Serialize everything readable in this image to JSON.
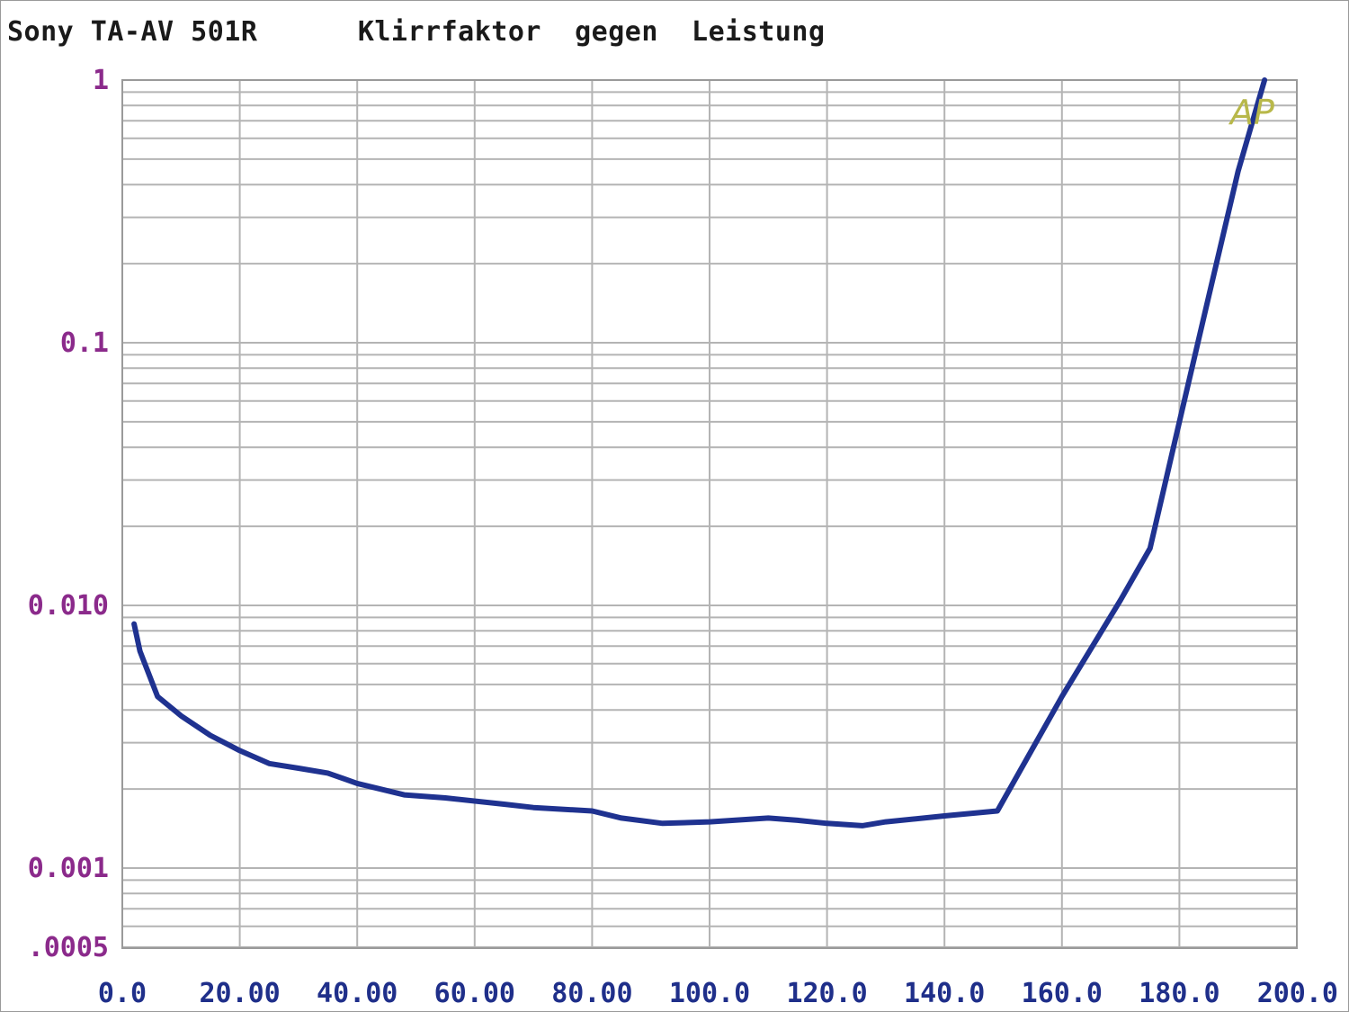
{
  "title": {
    "device": "Sony TA-AV 501R",
    "measurement": "Klirrfaktor  gegen  Leistung"
  },
  "logo": "AP",
  "colors": {
    "grid": "#b4b4b4",
    "frame": "#9a9a9a",
    "curve": "#1f3290",
    "y_tick_text": "#8b2a8b",
    "x_tick_text": "#1f2f8a",
    "logo": "#b8b84a"
  },
  "chart_data": {
    "type": "line",
    "title": "Klirrfaktor gegen Leistung",
    "xlabel": "",
    "ylabel": "",
    "xlim": [
      0,
      200
    ],
    "ylim": [
      0.0005,
      1
    ],
    "y_scale": "log",
    "grid": true,
    "x_ticks": [
      0,
      20,
      40,
      60,
      80,
      100,
      120,
      140,
      160,
      180,
      200
    ],
    "x_tick_labels": [
      "0.0",
      "20.00",
      "40.00",
      "60.00",
      "80.00",
      "100.0",
      "120.0",
      "140.0",
      "160.0",
      "180.0",
      "200.0"
    ],
    "y_ticks": [
      1,
      0.1,
      0.01,
      0.001,
      0.0005
    ],
    "y_tick_labels": [
      "1",
      "0.1",
      "0.010",
      "0.001",
      ".0005"
    ],
    "series": [
      {
        "x": [
          2,
          3,
          6,
          10,
          15,
          20,
          25,
          30,
          35,
          40,
          48,
          55,
          65,
          70,
          80,
          85,
          92,
          100,
          110,
          115,
          120,
          126,
          130,
          140,
          149,
          160,
          170,
          175,
          180,
          185,
          190,
          194.5
        ],
        "y": [
          0.0085,
          0.0067,
          0.0045,
          0.0038,
          0.0032,
          0.0028,
          0.0025,
          0.0024,
          0.0023,
          0.0021,
          0.0019,
          0.00185,
          0.00175,
          0.0017,
          0.00165,
          0.00155,
          0.00148,
          0.0015,
          0.00155,
          0.00152,
          0.00148,
          0.00145,
          0.0015,
          0.00158,
          0.00165,
          0.0045,
          0.0105,
          0.0165,
          0.05,
          0.15,
          0.45,
          1.0
        ]
      }
    ]
  }
}
